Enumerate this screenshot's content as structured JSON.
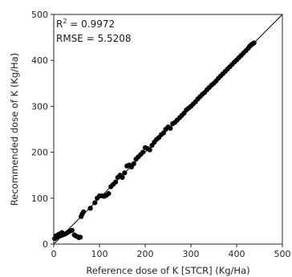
{
  "chart_data": {
    "type": "scatter",
    "xlabel": "Reference dose of K [STCR] (Kg/Ha)",
    "ylabel": "Recommended dose of K (Kg/Ha)",
    "xlim": [
      0,
      500
    ],
    "ylim": [
      0,
      500
    ],
    "xticks": [
      "0",
      "100",
      "200",
      "300",
      "400",
      "500"
    ],
    "yticks": [
      "0",
      "100",
      "200",
      "300",
      "400",
      "500"
    ],
    "grid": false,
    "legend": "none",
    "identity_line": true,
    "annotations": {
      "r2_prefix": "R",
      "r2_sup": "2",
      "r2_value": " = 0.9972",
      "rmse": "RMSE = 5.5208"
    },
    "marker_color": "#000000",
    "line_color": "#000000",
    "points": [
      [
        2,
        12
      ],
      [
        5,
        18
      ],
      [
        8,
        15
      ],
      [
        10,
        20
      ],
      [
        12,
        22
      ],
      [
        15,
        18
      ],
      [
        18,
        25
      ],
      [
        20,
        20
      ],
      [
        25,
        22
      ],
      [
        30,
        25
      ],
      [
        35,
        28
      ],
      [
        40,
        30
      ],
      [
        45,
        20
      ],
      [
        48,
        18
      ],
      [
        52,
        16
      ],
      [
        55,
        14
      ],
      [
        58,
        15
      ],
      [
        60,
        60
      ],
      [
        62,
        65
      ],
      [
        65,
        70
      ],
      [
        80,
        78
      ],
      [
        90,
        90
      ],
      [
        95,
        100
      ],
      [
        100,
        105
      ],
      [
        105,
        105
      ],
      [
        110,
        104
      ],
      [
        115,
        106
      ],
      [
        120,
        110
      ],
      [
        125,
        125
      ],
      [
        130,
        130
      ],
      [
        135,
        135
      ],
      [
        140,
        145
      ],
      [
        145,
        150
      ],
      [
        150,
        145
      ],
      [
        155,
        155
      ],
      [
        160,
        170
      ],
      [
        165,
        172
      ],
      [
        170,
        168
      ],
      [
        175,
        175
      ],
      [
        180,
        185
      ],
      [
        185,
        190
      ],
      [
        190,
        195
      ],
      [
        195,
        200
      ],
      [
        200,
        210
      ],
      [
        205,
        208
      ],
      [
        210,
        205
      ],
      [
        215,
        215
      ],
      [
        220,
        222
      ],
      [
        225,
        228
      ],
      [
        230,
        232
      ],
      [
        235,
        238
      ],
      [
        240,
        242
      ],
      [
        245,
        250
      ],
      [
        250,
        255
      ],
      [
        255,
        252
      ],
      [
        260,
        262
      ],
      [
        265,
        265
      ],
      [
        270,
        270
      ],
      [
        275,
        275
      ],
      [
        280,
        280
      ],
      [
        285,
        285
      ],
      [
        290,
        292
      ],
      [
        295,
        296
      ],
      [
        300,
        300
      ],
      [
        305,
        305
      ],
      [
        310,
        310
      ],
      [
        315,
        316
      ],
      [
        320,
        321
      ],
      [
        325,
        326
      ],
      [
        330,
        330
      ],
      [
        335,
        336
      ],
      [
        340,
        341
      ],
      [
        345,
        346
      ],
      [
        350,
        350
      ],
      [
        355,
        355
      ],
      [
        360,
        361
      ],
      [
        365,
        366
      ],
      [
        370,
        371
      ],
      [
        375,
        376
      ],
      [
        380,
        381
      ],
      [
        385,
        386
      ],
      [
        390,
        391
      ],
      [
        395,
        396
      ],
      [
        400,
        401
      ],
      [
        405,
        406
      ],
      [
        410,
        411
      ],
      [
        415,
        416
      ],
      [
        420,
        421
      ],
      [
        425,
        426
      ],
      [
        428,
        430
      ],
      [
        430,
        432
      ],
      [
        432,
        434
      ],
      [
        435,
        436
      ],
      [
        438,
        438
      ]
    ]
  }
}
